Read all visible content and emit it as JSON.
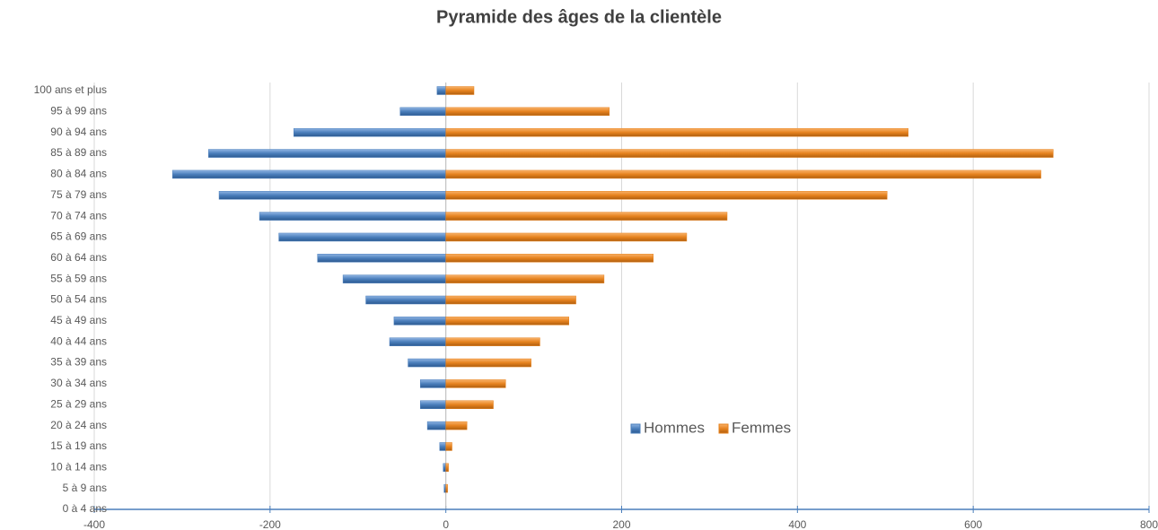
{
  "chart_data": {
    "type": "pyramid",
    "title": "Pyramide des âges de la clientèle",
    "categories": [
      "0 à 4 ans",
      "5 à 9 ans",
      "10 à 14 ans",
      "15 à 19 ans",
      "20 à 24 ans",
      "25 à 29 ans",
      "30 à 34 ans",
      "35 à 39 ans",
      "40 à 44 ans",
      "45 à 49 ans",
      "50 à 54 ans",
      "55 à 59 ans",
      "60 à 64 ans",
      "65 à 69 ans",
      "70 à 74 ans",
      "75 à 79 ans",
      "80 à 84 ans",
      "85 à 89 ans",
      "90 à 94 ans",
      "95 à 99 ans",
      "100 ans et plus"
    ],
    "series": [
      {
        "name": "Hommes",
        "color": "#4a7ebb",
        "values": [
          0,
          -2,
          -3,
          -7,
          -21,
          -29,
          -29,
          -43,
          -64,
          -59,
          -91,
          -117,
          -146,
          -190,
          -212,
          -258,
          -311,
          -270,
          -173,
          -52,
          -10
        ]
      },
      {
        "name": "Femmes",
        "color": "#e6821e",
        "values": [
          0,
          2,
          3,
          7,
          24,
          54,
          68,
          97,
          107,
          140,
          148,
          180,
          236,
          274,
          320,
          502,
          677,
          691,
          526,
          186,
          32
        ]
      }
    ],
    "xlim": [
      -400,
      800
    ],
    "xticks": [
      -400,
      -200,
      0,
      200,
      400,
      600,
      800
    ],
    "grid": true,
    "legend": "center"
  }
}
